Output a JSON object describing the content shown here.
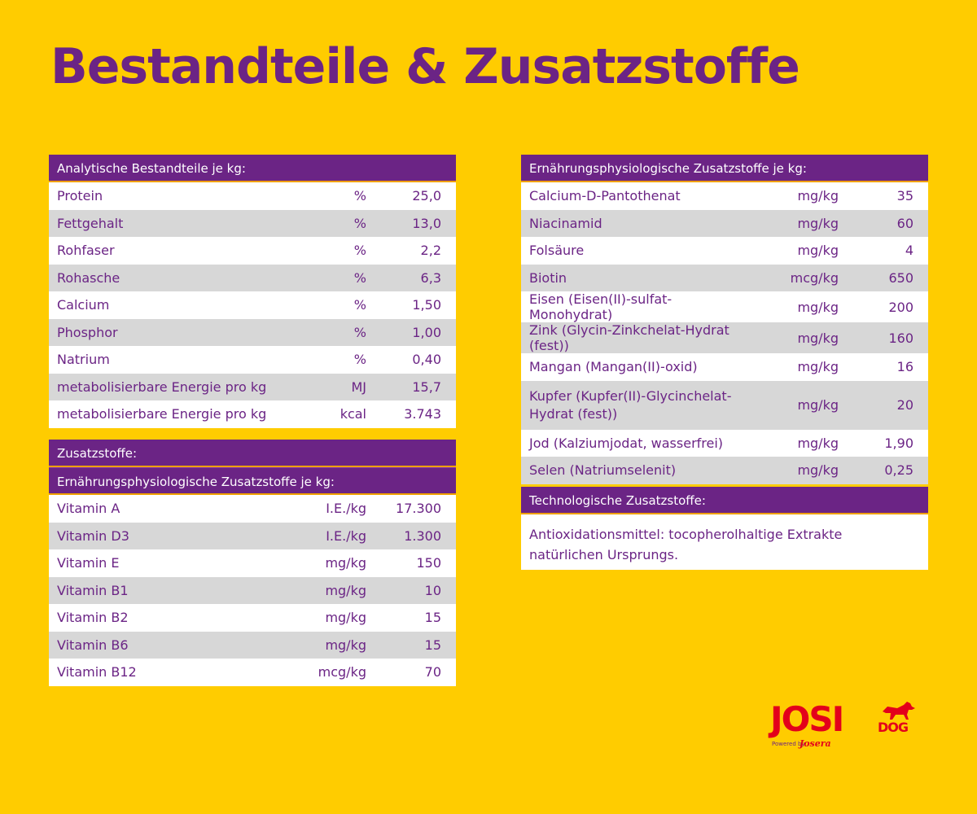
{
  "title": "Bestandteile & Zusatzstoffe",
  "analytic": {
    "header": "Analytische Bestandteile je kg:",
    "rows": [
      {
        "label": "Protein",
        "unit": "%",
        "value": "25,0"
      },
      {
        "label": "Fettgehalt",
        "unit": "%",
        "value": "13,0"
      },
      {
        "label": "Rohfaser",
        "unit": "%",
        "value": "2,2"
      },
      {
        "label": "Rohasche",
        "unit": "%",
        "value": "6,3"
      },
      {
        "label": "Calcium",
        "unit": "%",
        "value": "1,50"
      },
      {
        "label": "Phosphor",
        "unit": "%",
        "value": "1,00"
      },
      {
        "label": "Natrium",
        "unit": "%",
        "value": "0,40"
      },
      {
        "label": "metabolisierbare Energie pro kg",
        "unit": "MJ",
        "value": "15,7"
      },
      {
        "label": "metabolisierbare Energie pro kg",
        "unit": "kcal",
        "value": "3.743"
      }
    ]
  },
  "additives": {
    "header": "Zusatzstoffe:",
    "subheader": "Ernährungsphysiologische Zusatzstoffe je kg:",
    "rows": [
      {
        "label": "Vitamin A",
        "unit": "I.E./kg",
        "value": "17.300"
      },
      {
        "label": "Vitamin D3",
        "unit": "I.E./kg",
        "value": "1.300"
      },
      {
        "label": "Vitamin E",
        "unit": "mg/kg",
        "value": "150"
      },
      {
        "label": "Vitamin B1",
        "unit": "mg/kg",
        "value": "10"
      },
      {
        "label": "Vitamin B2",
        "unit": "mg/kg",
        "value": "15"
      },
      {
        "label": "Vitamin B6",
        "unit": "mg/kg",
        "value": "15"
      },
      {
        "label": "Vitamin B12",
        "unit": "mcg/kg",
        "value": "70"
      }
    ]
  },
  "nutritional": {
    "header": "Ernährungsphysiologische Zusatzstoffe je kg:",
    "rows": [
      {
        "label": "Calcium-D-Pantothenat",
        "unit": "mg/kg",
        "value": "35"
      },
      {
        "label": "Niacinamid",
        "unit": "mg/kg",
        "value": "60"
      },
      {
        "label": "Folsäure",
        "unit": "mg/kg",
        "value": "4"
      },
      {
        "label": "Biotin",
        "unit": "mcg/kg",
        "value": "650"
      },
      {
        "label": "Eisen (Eisen(II)-sulfat-Monohydrat)",
        "unit": "mg/kg",
        "value": "200"
      },
      {
        "label": "Zink (Glycin-Zinkchelat-Hydrat (fest))",
        "unit": "mg/kg",
        "value": "160"
      },
      {
        "label": "Mangan (Mangan(II)-oxid)",
        "unit": "mg/kg",
        "value": "16"
      },
      {
        "label": "Kupfer (Kupfer(II)-Glycinchelat-Hydrat (fest))",
        "unit": "mg/kg",
        "value": "20"
      },
      {
        "label": "Jod (Kalziumjodat, wasserfrei)",
        "unit": "mg/kg",
        "value": "1,90"
      },
      {
        "label": "Selen (Natriumselenit)",
        "unit": "mg/kg",
        "value": "0,25"
      }
    ]
  },
  "technological": {
    "header": "Technologische Zusatzstoffe:",
    "text": "Antioxidationsmittel: tocopherolhaltige Extrakte natürlichen Ursprungs."
  },
  "logo": {
    "word": "JOSI",
    "dog": "DOG",
    "powered": "Powered by",
    "brand": "Josera",
    "icon": "dog-silhouette-icon"
  },
  "colors": {
    "background": "#ffcc00",
    "purple": "#6b2485",
    "row_gray": "#d7d7d7",
    "logo_red": "#e3001b"
  }
}
